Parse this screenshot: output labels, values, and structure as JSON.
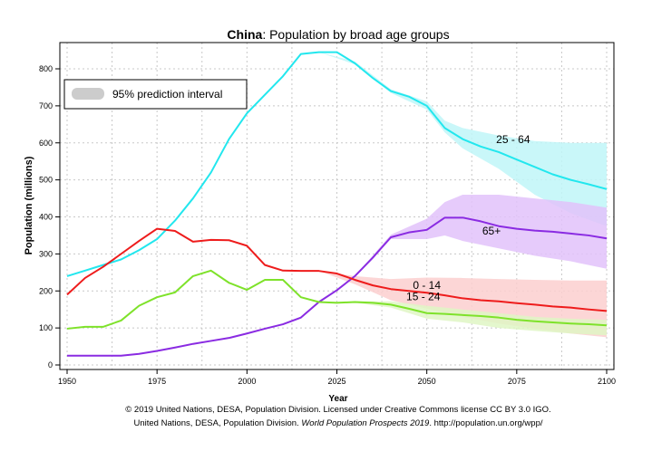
{
  "chart_data": {
    "type": "line",
    "title_bold": "China",
    "title_rest": ": Population by broad age groups",
    "xlabel": "Year",
    "ylabel": "Population (millions)",
    "xlim": [
      1950,
      2100
    ],
    "ylim": [
      0,
      850
    ],
    "xticks": [
      1950,
      1975,
      2000,
      2025,
      2050,
      2075,
      2100
    ],
    "yticks": [
      0,
      100,
      200,
      300,
      400,
      500,
      600,
      700,
      800
    ],
    "grid": true,
    "legend": {
      "position": "top-left",
      "label": "95% prediction interval",
      "color": "#cccccc"
    },
    "series": [
      {
        "name": "25 - 64",
        "color": "#22e7ee",
        "band_color": "#bff6f8",
        "label": "25 - 64",
        "x": [
          1950,
          1955,
          1960,
          1965,
          1970,
          1975,
          1980,
          1985,
          1990,
          1995,
          2000,
          2005,
          2010,
          2015,
          2020,
          2025,
          2030,
          2035,
          2040,
          2045,
          2050,
          2055,
          2060,
          2065,
          2070,
          2075,
          2080,
          2085,
          2090,
          2095,
          2100
        ],
        "values": [
          240,
          255,
          270,
          285,
          310,
          340,
          390,
          450,
          520,
          610,
          680,
          730,
          780,
          840,
          845,
          845,
          815,
          775,
          740,
          725,
          700,
          640,
          610,
          590,
          575,
          555,
          535,
          515,
          500,
          488,
          475
        ],
        "band_x": [
          2020,
          2030,
          2040,
          2050,
          2055,
          2060,
          2070,
          2080,
          2090,
          2100
        ],
        "band_low": [
          845,
          812,
          735,
          690,
          628,
          585,
          530,
          460,
          410,
          375
        ],
        "band_high": [
          845,
          820,
          745,
          712,
          660,
          640,
          620,
          605,
          600,
          600
        ]
      },
      {
        "name": "65+",
        "color": "#8a2be2",
        "band_color": "#e2c2fa",
        "label": "65+",
        "x": [
          1950,
          1955,
          1960,
          1965,
          1970,
          1975,
          1980,
          1985,
          1990,
          1995,
          2000,
          2005,
          2010,
          2015,
          2020,
          2025,
          2030,
          2035,
          2040,
          2045,
          2050,
          2055,
          2060,
          2065,
          2070,
          2075,
          2080,
          2085,
          2090,
          2095,
          2100
        ],
        "values": [
          25,
          25,
          25,
          25,
          30,
          38,
          47,
          57,
          65,
          73,
          85,
          98,
          110,
          128,
          170,
          202,
          240,
          290,
          345,
          358,
          365,
          398,
          398,
          388,
          375,
          368,
          363,
          360,
          355,
          350,
          342
        ],
        "band_x": [
          2020,
          2030,
          2040,
          2050,
          2055,
          2060,
          2070,
          2080,
          2090,
          2100
        ],
        "band_low": [
          170,
          240,
          340,
          340,
          350,
          335,
          315,
          295,
          280,
          260
        ],
        "band_high": [
          170,
          240,
          352,
          395,
          440,
          460,
          460,
          450,
          440,
          425
        ]
      },
      {
        "name": "0 - 14",
        "color": "#ee1c1c",
        "band_color": "#fbcfcf",
        "label": "0 - 14",
        "x": [
          1950,
          1955,
          1960,
          1965,
          1970,
          1975,
          1980,
          1985,
          1990,
          1995,
          2000,
          2005,
          2010,
          2015,
          2020,
          2025,
          2030,
          2035,
          2040,
          2045,
          2050,
          2055,
          2060,
          2065,
          2070,
          2075,
          2080,
          2085,
          2090,
          2095,
          2100
        ],
        "values": [
          190,
          235,
          265,
          300,
          335,
          368,
          362,
          333,
          338,
          337,
          322,
          270,
          255,
          254,
          254,
          247,
          230,
          215,
          205,
          200,
          195,
          188,
          180,
          175,
          172,
          167,
          163,
          158,
          155,
          150,
          146
        ],
        "band_x": [
          2020,
          2030,
          2040,
          2050,
          2060,
          2070,
          2080,
          2090,
          2100
        ],
        "band_low": [
          254,
          218,
          175,
          152,
          130,
          112,
          98,
          85,
          75
        ],
        "band_high": [
          254,
          240,
          232,
          236,
          235,
          232,
          230,
          228,
          228
        ]
      },
      {
        "name": "15 - 24",
        "color": "#7ee22a",
        "band_color": "#dff6c4",
        "label": "15 - 24",
        "x": [
          1950,
          1955,
          1960,
          1965,
          1970,
          1975,
          1980,
          1985,
          1990,
          1995,
          2000,
          2005,
          2010,
          2015,
          2020,
          2025,
          2030,
          2035,
          2040,
          2045,
          2050,
          2055,
          2060,
          2065,
          2070,
          2075,
          2080,
          2085,
          2090,
          2095,
          2100
        ],
        "values": [
          98,
          103,
          103,
          120,
          160,
          183,
          196,
          240,
          255,
          222,
          203,
          230,
          230,
          183,
          170,
          168,
          170,
          168,
          163,
          152,
          140,
          138,
          135,
          132,
          128,
          122,
          118,
          115,
          112,
          110,
          107
        ],
        "band_x": [
          2020,
          2030,
          2040,
          2050,
          2060,
          2070,
          2080,
          2090,
          2100
        ],
        "band_low": [
          170,
          168,
          155,
          125,
          115,
          100,
          92,
          85,
          80
        ],
        "band_high": [
          170,
          172,
          172,
          160,
          150,
          140,
          130,
          125,
          122
        ]
      }
    ]
  },
  "footer": {
    "line1": "© 2019 United Nations, DESA, Population Division. Licensed under Creative Commons license CC BY 3.0 IGO.",
    "line2_prefix": "United Nations, DESA, Population Division. ",
    "line2_italic": "World Population Prospects 2019",
    "line2_suffix": ". http://population.un.org/wpp/"
  }
}
